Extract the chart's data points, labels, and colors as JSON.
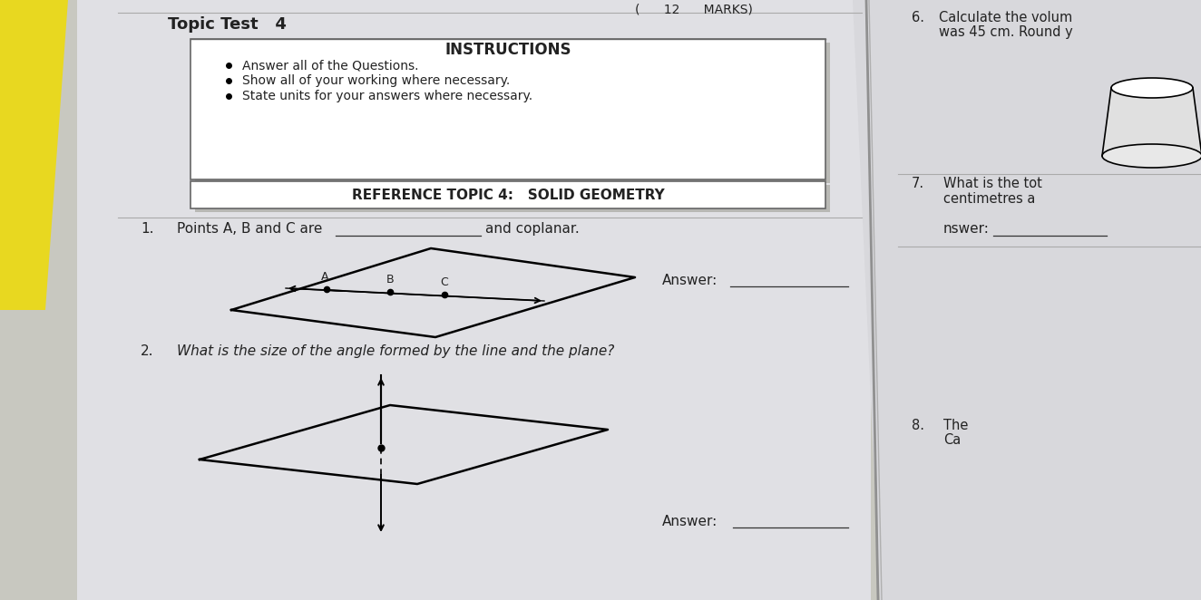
{
  "bg_color": "#c8c8c0",
  "page_bg": "#e8e8ec",
  "right_page_bg": "#dcdce0",
  "yellow_color": "#e8d820",
  "title": "Topic Test   4",
  "marks_text": "(⁠   12     MARKS)",
  "instructions_title": "INSTRUCTIONS",
  "instructions": [
    "Answer all of the Questions.",
    "Show all of your working where necessary.",
    "State units for your answers where necessary."
  ],
  "ref_topic": "REFERENCE TOPIC 4:   SOLID GEOMETRY",
  "q1_num": "1.",
  "q1_text": "Points A, B and C are",
  "q1_blank": "______________",
  "q1_text2": "and coplanar.",
  "q2_num": "2.",
  "q2_text": "What is the size of the angle formed by the line and the plane?",
  "answer_label": "Answer:",
  "answer_label2": "Answer:",
  "right_q6_num": "6.",
  "right_q6_text1": "Calculate the volum",
  "right_q6_text2": "was 45 cm. Round y",
  "right_q7_num": "7.",
  "right_q7_text1": "What is the tot",
  "right_q7_text2": "centimetres a",
  "right_q8_num": "8.",
  "right_q8_text1": "The",
  "right_q8_text2": "Ca",
  "nswer_label": "nswer:",
  "text_color": "#222222",
  "box_border": "#666666",
  "line_color": "#888888",
  "answer_line_color": "#333333",
  "separator_color": "#aaaaaa"
}
